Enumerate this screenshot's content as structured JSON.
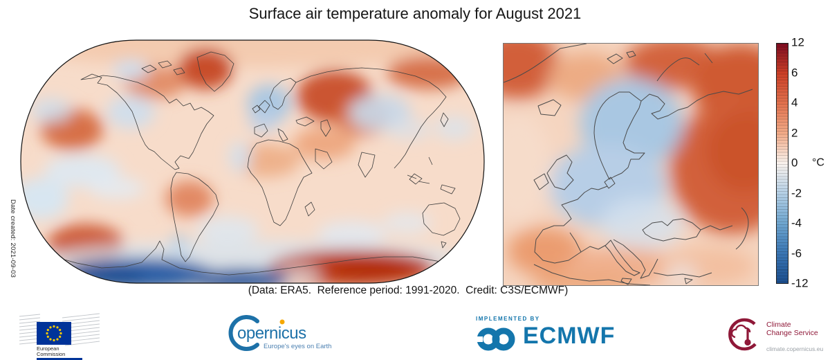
{
  "title": "Surface air temperature anomaly for August 2021",
  "caption": "(Data: ERA5.  Reference period: 1991-2020.  Credit: C3S/ECMWF)",
  "date_note": "Date created: 2021-09-03",
  "colorbar": {
    "unit": "°C",
    "ticks": [
      "12",
      "6",
      "4",
      "2",
      "0",
      "-2",
      "-4",
      "-6",
      "-12"
    ],
    "min": -12,
    "max": 12,
    "stops": [
      {
        "value": 12,
        "color": "#7d0c21"
      },
      {
        "value": 6,
        "color": "#cc4027"
      },
      {
        "value": 4,
        "color": "#e2724e"
      },
      {
        "value": 2,
        "color": "#f2ab88"
      },
      {
        "value": 0,
        "color": "#faf3ee"
      },
      {
        "value": -2,
        "color": "#b5d0e6"
      },
      {
        "value": -4,
        "color": "#6fa6d0"
      },
      {
        "value": -6,
        "color": "#3a76b4"
      },
      {
        "value": -12,
        "color": "#1c4e8e"
      }
    ]
  },
  "chart_data": {
    "type": "heatmap",
    "title": "Surface air temperature anomaly for August 2021",
    "unit": "°C",
    "dataset": "ERA5",
    "reference_period": "1991-2020",
    "credit": "C3S/ECMWF",
    "colorbar_ticks": [
      12,
      6,
      4,
      2,
      0,
      -2,
      -4,
      -6,
      -12
    ],
    "colorbar_range": [
      -12,
      12
    ],
    "legend_position": "right",
    "panels": [
      {
        "name": "global",
        "projection": "Robinson",
        "notable_anomalies": [
          {
            "region": "Greenland",
            "anomaly_c": 4
          },
          {
            "region": "Western Russia / Urals",
            "anomaly_c": 4
          },
          {
            "region": "Eastern Siberia (Arctic coast)",
            "anomaly_c": 3
          },
          {
            "region": "Scandinavia and north-central Europe",
            "anomaly_c": -1.5
          },
          {
            "region": "Central Asia",
            "anomaly_c": -1
          },
          {
            "region": "Central Canada",
            "anomaly_c": -1
          },
          {
            "region": "Gulf of Alaska / NE Pacific",
            "anomaly_c": 2.5
          },
          {
            "region": "Mediterranean and Middle East",
            "anomaly_c": 1.5
          },
          {
            "region": "Central Brazil",
            "anomaly_c": 1.5
          },
          {
            "region": "Southeast Pacific (mid-latitudes)",
            "anomaly_c": 3
          },
          {
            "region": "East Antarctica",
            "anomaly_c": 8
          },
          {
            "region": "West Antarctic / Antarctic coast (Atlantic-Indian sector)",
            "anomaly_c": -8
          },
          {
            "region": "Global background (most oceans)",
            "anomaly_c": 0.5
          }
        ]
      },
      {
        "name": "europe",
        "projection": "regional (Europe)",
        "notable_anomalies": [
          {
            "region": "Scandinavia and central Europe",
            "anomaly_c": -1.5
          },
          {
            "region": "British Isles",
            "anomaly_c": -0.5
          },
          {
            "region": "Western Russia",
            "anomaly_c": 3
          },
          {
            "region": "Barents region / far north-east",
            "anomaly_c": 3
          },
          {
            "region": "Greenland (map corner)",
            "anomaly_c": 3
          },
          {
            "region": "Iberia and western Mediterranean",
            "anomaly_c": 1.5
          },
          {
            "region": "Italy and central Mediterranean",
            "anomaly_c": 1
          },
          {
            "region": "Turkey / eastern Mediterranean",
            "anomaly_c": 1
          }
        ]
      }
    ]
  },
  "logos": {
    "european_commission": {
      "line1": "European",
      "line2": "Commission"
    },
    "copernicus": {
      "word": "opernicus",
      "tagline": "Europe's eyes on Earth"
    },
    "ecmwf": {
      "implemented_by": "IMPLEMENTED BY",
      "name": "ECMWF"
    },
    "c3s": {
      "line1": "Climate",
      "line2": "Change Service",
      "url": "climate.copernicus.eu"
    }
  },
  "colors": {
    "ecmwf_blue": "#1476ac",
    "copernicus_blue": "#1d71a8",
    "copernicus_orange": "#f6a800",
    "c3s_maroon": "#8f1838",
    "eu_flag_blue": "#003399",
    "eu_star_yellow": "#ffcc00",
    "map_outline": "#3c3c3c"
  }
}
